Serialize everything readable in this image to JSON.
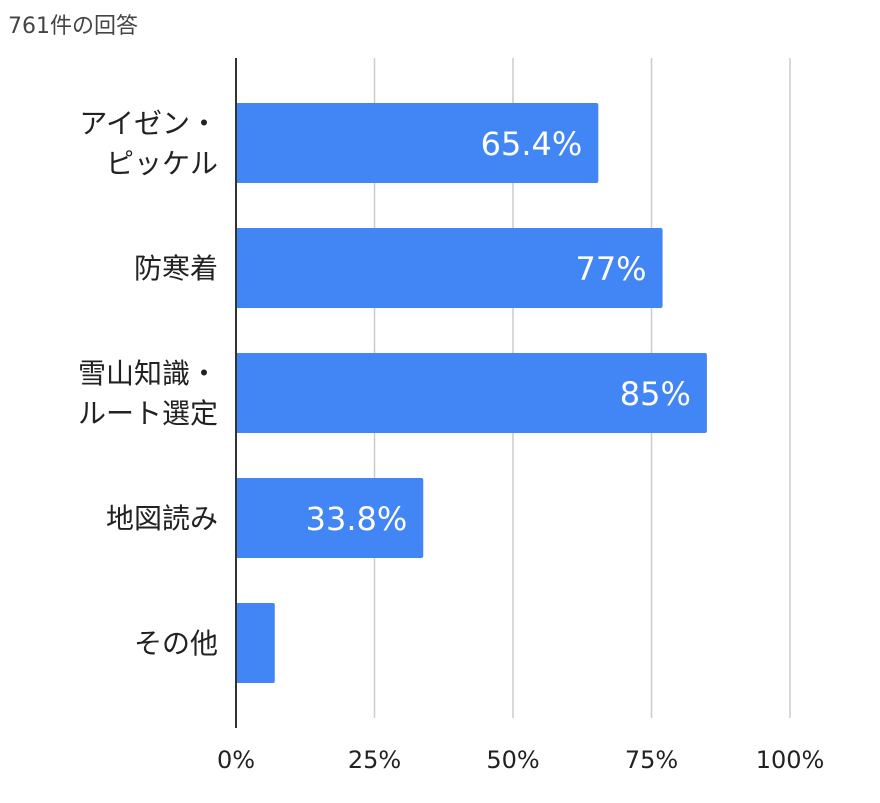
{
  "header": {
    "response_count": "761件の回答"
  },
  "colors": {
    "bar": "#4285F4",
    "grid": "#cccccc",
    "axis": "#333333",
    "label_text": "#222222",
    "value_text": "#ffffff"
  },
  "chart_data": {
    "type": "bar",
    "orientation": "horizontal",
    "categories": [
      [
        "アイゼン・",
        "ピッケル"
      ],
      [
        "防寒着"
      ],
      [
        "雪山知識・",
        "ルート選定"
      ],
      [
        "地図読み"
      ],
      [
        "その他"
      ]
    ],
    "values": [
      65.4,
      77,
      85,
      33.8,
      7
    ],
    "value_labels": [
      "65.4%",
      "77%",
      "85%",
      "33.8%",
      ""
    ],
    "xlim": [
      0,
      100
    ],
    "xticks": [
      0,
      25,
      50,
      75,
      100
    ],
    "xtick_labels": [
      "0%",
      "25%",
      "50%",
      "75%",
      "100%"
    ],
    "grid": true,
    "legend": "none"
  }
}
